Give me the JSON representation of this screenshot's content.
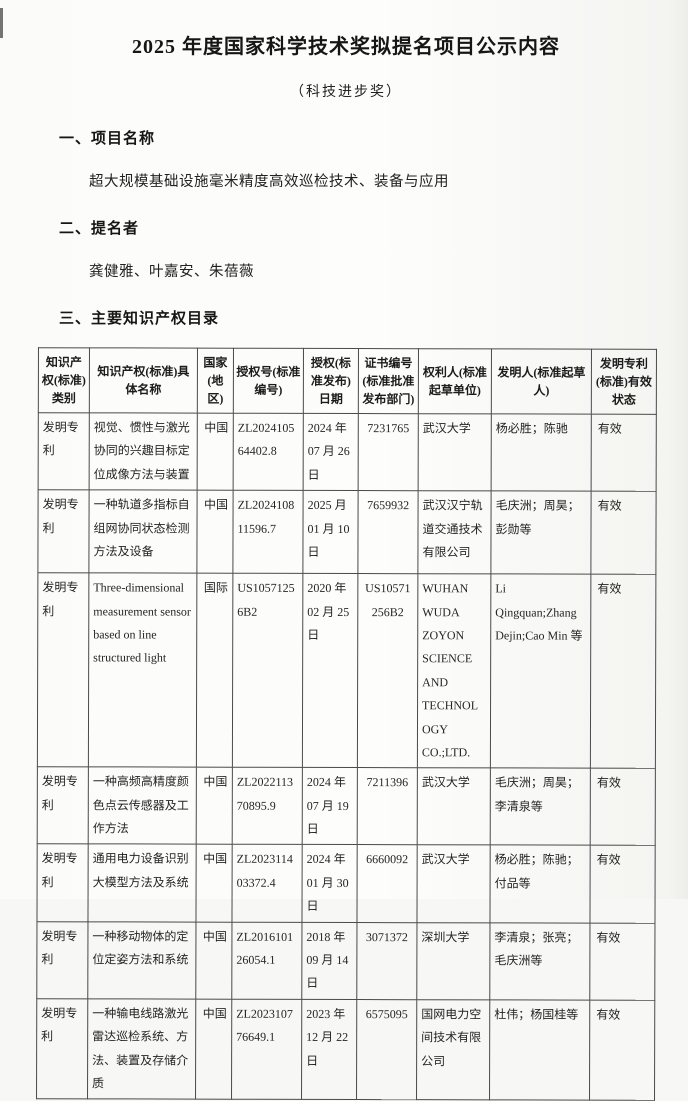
{
  "page": {
    "title": "2025 年度国家科学技术奖拟提名项目公示内容",
    "subtitle": "（科技进步奖）"
  },
  "sections": {
    "s1_heading": "一、项目名称",
    "s1_content": "超大规模基础设施毫米精度高效巡检技术、装备与应用",
    "s2_heading": "二、提名者",
    "s2_content": "龚健雅、叶嘉安、朱蓓薇",
    "s3_heading": "三、主要知识产权目录"
  },
  "table": {
    "headers": [
      "知识产权(标准)类别",
      "知识产权(标准)具体名称",
      "国家(地区)",
      "授权号(标准编号)",
      "授权(标准发布)日期",
      "证书编号(标准批准发布部门)",
      "权利人(标准起草单位)",
      "发明人(标准起草人)",
      "发明专利(标准)有效状态"
    ],
    "rows": [
      {
        "cells": [
          "发明专利",
          "视觉、惯性与激光协同的兴趣目标定位成像方法与装置",
          "中国",
          "ZL202410564402.8",
          "2024 年 07 月 26 日",
          "7231765",
          "武汉大学",
          "杨必胜；陈驰",
          "有效"
        ]
      },
      {
        "cells": [
          "发明专利",
          "一种轨道多指标自组网协同状态检测方法及设备",
          "中国",
          "ZL202410811596.7",
          "2025 月 01 月 10 日",
          "7659932",
          "武汉汉宁轨道交通技术有限公司",
          "毛庆洲；周昊；彭勋等",
          "有效"
        ]
      },
      {
        "cells": [
          "发明专利",
          "Three-dimensional measurement sensor based on line structured light",
          "国际",
          "US10571256B2",
          "2020 年 02 月 25 日",
          "US10571256B2",
          "WUHAN WUDA ZOYON SCIENCE AND TECHNOLOGY CO.;LTD.",
          "Li Qingquan;Zhang Dejin;Cao Min 等",
          "有效"
        ]
      },
      {
        "cells": [
          "发明专利",
          "一种高频高精度颜色点云传感器及工作方法",
          "中国",
          "ZL202211370895.9",
          "2024 年 07 月 19 日",
          "7211396",
          "武汉大学",
          "毛庆洲；周昊；李清泉等",
          "有效"
        ]
      },
      {
        "cells": [
          "发明专利",
          "通用电力设备识别大模型方法及系统",
          "中国",
          "ZL202311403372.4",
          "2024 年 01 月 30 日",
          "6660092",
          "武汉大学",
          "杨必胜；陈驰；付品等",
          "有效"
        ]
      },
      {
        "cells": [
          "发明专利",
          "一种移动物体的定位定姿方法和系统",
          "中国",
          "ZL201610126054.1",
          "2018 年 09 月 14 日",
          "3071372",
          "深圳大学",
          "李清泉；张亮；毛庆洲等",
          "有效"
        ]
      },
      {
        "cells": [
          "发明专利",
          "一种输电线路激光雷达巡检系统、方法、装置及存储介质",
          "中国",
          "ZL202310776649.1",
          "2023 年 12 月 22 日",
          "6575095",
          "国网电力空间技术有限公司",
          "杜伟；杨国桂等",
          "有效"
        ]
      }
    ]
  },
  "colors": {
    "ink": "#1f1f1f",
    "border": "#4a4a4a",
    "paper": "#fbfbf9"
  }
}
